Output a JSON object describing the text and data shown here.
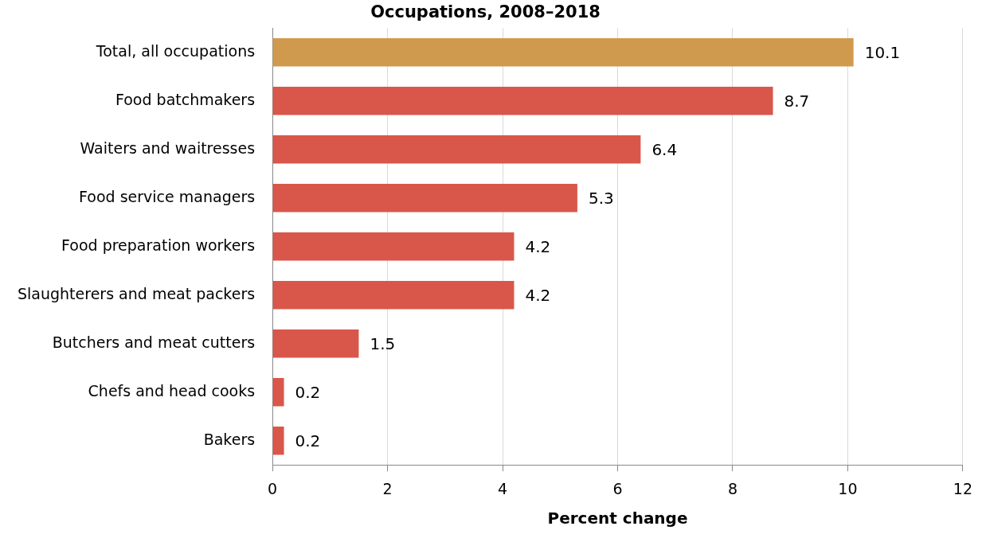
{
  "chart_data": {
    "type": "bar",
    "orientation": "horizontal",
    "title": "Occupations, 2008–2018",
    "xlabel": "Percent change",
    "categories": [
      "Total, all occupations",
      "Food batchmakers",
      "Waiters and waitresses",
      "Food service managers",
      "Food preparation workers",
      "Slaughterers and meat packers",
      "Butchers and meat cutters",
      "Chefs and head cooks",
      "Bakers"
    ],
    "values": [
      10.1,
      8.7,
      6.4,
      5.3,
      4.2,
      4.2,
      1.5,
      0.2,
      0.2
    ],
    "colors": [
      "#d09a4e",
      "#d9574a",
      "#d9574a",
      "#d9574a",
      "#d9574a",
      "#d9574a",
      "#d9574a",
      "#d9574a",
      "#d9574a"
    ],
    "xlim": [
      0,
      12
    ],
    "xticks": [
      0,
      2,
      4,
      6,
      8,
      10,
      12
    ],
    "grid": "x",
    "data_labels": true,
    "legend": false
  }
}
